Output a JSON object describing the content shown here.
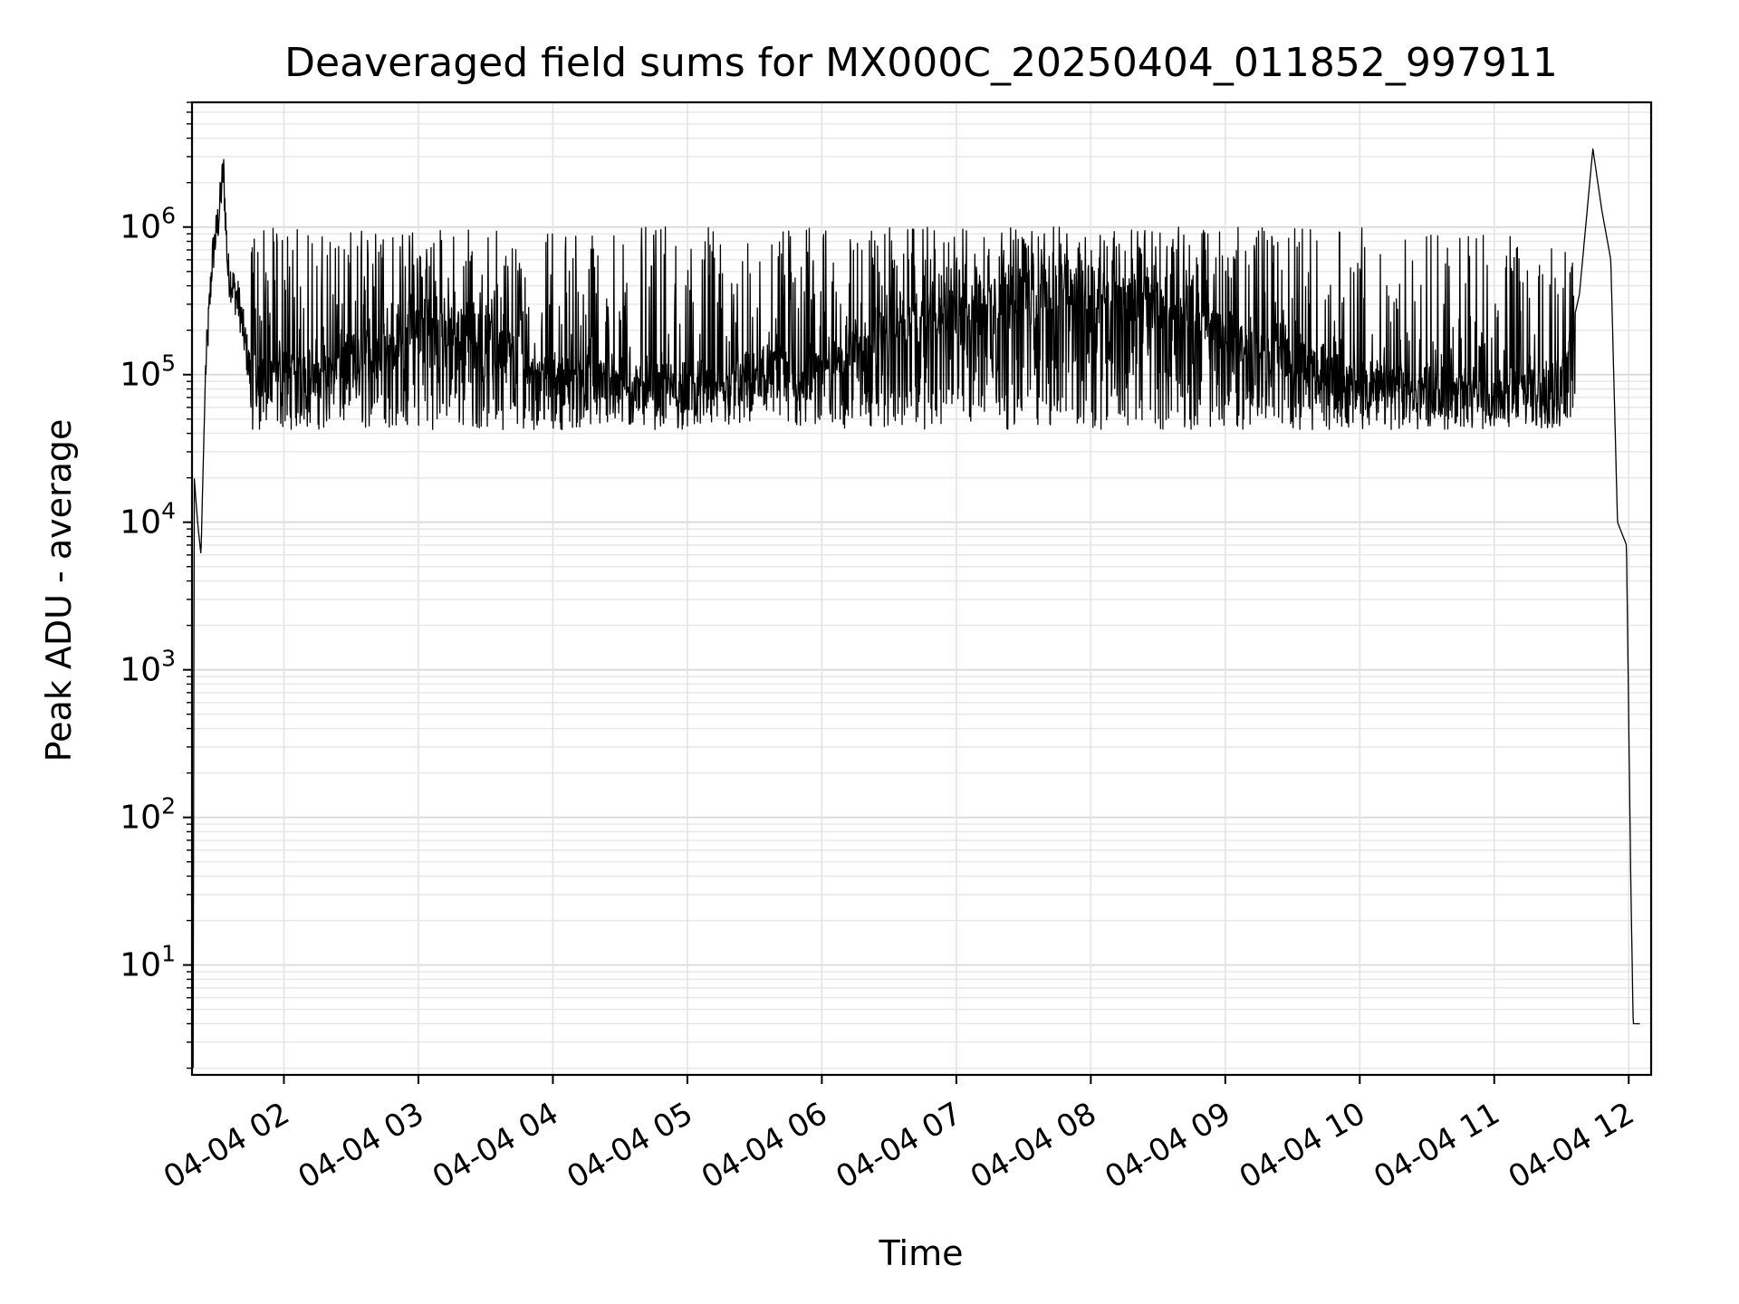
{
  "chart_data": {
    "type": "line",
    "title": "Deaveraged field sums for MX000C_20250404_011852_997911",
    "xlabel": "Time",
    "ylabel": "Peak ADU - average",
    "y_scale": "log",
    "ylim": [
      1.8,
      7000000
    ],
    "xlim": [
      "2025-04-04 01:19:00",
      "2025-04-04 12:10:00"
    ],
    "x_tick_labels": [
      "04-04 02",
      "04-04 03",
      "04-04 04",
      "04-04 05",
      "04-04 06",
      "04-04 07",
      "04-04 08",
      "04-04 09",
      "04-04 10",
      "04-04 11",
      "04-04 12"
    ],
    "x_tick_values": [
      "2025-04-04 02:00",
      "2025-04-04 03:00",
      "2025-04-04 04:00",
      "2025-04-04 05:00",
      "2025-04-04 06:00",
      "2025-04-04 07:00",
      "2025-04-04 08:00",
      "2025-04-04 09:00",
      "2025-04-04 10:00",
      "2025-04-04 11:00",
      "2025-04-04 12:00"
    ],
    "y_tick_labels": [
      {
        "base": "10",
        "exp": "1",
        "value": 10
      },
      {
        "base": "10",
        "exp": "2",
        "value": 100
      },
      {
        "base": "10",
        "exp": "3",
        "value": 1000
      },
      {
        "base": "10",
        "exp": "4",
        "value": 10000
      },
      {
        "base": "10",
        "exp": "5",
        "value": 100000
      },
      {
        "base": "10",
        "exp": "6",
        "value": 1000000
      }
    ],
    "grid": "on (major and minor, light gray)",
    "line_color": "#000000",
    "series": [
      {
        "points": [
          {
            "x": "2025-04-04 01:19:30",
            "y": 2
          },
          {
            "x": "2025-04-04 01:20:00",
            "y": 20000
          },
          {
            "x": "2025-04-04 01:21:30",
            "y": 10000
          },
          {
            "x": "2025-04-04 01:23:00",
            "y": 6000
          },
          {
            "x": "2025-04-04 01:25:00",
            "y": 100000
          },
          {
            "x": "2025-04-04 01:28:00",
            "y": 600000
          },
          {
            "x": "2025-04-04 01:31:00",
            "y": 1200000
          },
          {
            "x": "2025-04-04 01:33:00",
            "y": 2500000
          },
          {
            "x": "2025-04-04 01:35:00",
            "y": 500000
          },
          {
            "x": "2025-04-04 01:40:00",
            "y": 300000
          },
          {
            "x": "2025-04-04 01:45:00",
            "y": 100000
          },
          {
            "x": "2025-04-04 02:00:00",
            "y": 110000
          },
          {
            "x": "2025-04-04 02:30:00",
            "y": 130000
          },
          {
            "x": "2025-04-04 03:00:00",
            "y": 250000
          },
          {
            "x": "2025-04-04 03:30:00",
            "y": 200000
          },
          {
            "x": "2025-04-04 04:00:00",
            "y": 100000
          },
          {
            "x": "2025-04-04 04:30:00",
            "y": 90000
          },
          {
            "x": "2025-04-04 05:00:00",
            "y": 80000
          },
          {
            "x": "2025-04-04 05:30:00",
            "y": 100000
          },
          {
            "x": "2025-04-04 06:00:00",
            "y": 120000
          },
          {
            "x": "2025-04-04 06:30:00",
            "y": 200000
          },
          {
            "x": "2025-04-04 07:00:00",
            "y": 300000
          },
          {
            "x": "2025-04-04 07:30:00",
            "y": 400000
          },
          {
            "x": "2025-04-04 08:00:00",
            "y": 400000
          },
          {
            "x": "2025-04-04 08:30:00",
            "y": 350000
          },
          {
            "x": "2025-04-04 09:00:00",
            "y": 200000
          },
          {
            "x": "2025-04-04 09:30:00",
            "y": 130000
          },
          {
            "x": "2025-04-04 10:00:00",
            "y": 90000
          },
          {
            "x": "2025-04-04 10:30:00",
            "y": 80000
          },
          {
            "x": "2025-04-04 11:00:00",
            "y": 70000
          },
          {
            "x": "2025-04-04 11:30:00",
            "y": 100000
          },
          {
            "x": "2025-04-04 11:38:00",
            "y": 350000
          },
          {
            "x": "2025-04-04 11:44:00",
            "y": 3400000
          },
          {
            "x": "2025-04-04 11:48:00",
            "y": 1300000
          },
          {
            "x": "2025-04-04 11:52:00",
            "y": 600000
          },
          {
            "x": "2025-04-04 11:55:00",
            "y": 10000
          },
          {
            "x": "2025-04-04 11:59:00",
            "y": 7000
          },
          {
            "x": "2025-04-04 12:01:00",
            "y": 30
          },
          {
            "x": "2025-04-04 12:02:00",
            "y": 4
          },
          {
            "x": "2025-04-04 12:05:00",
            "y": 4
          }
        ],
        "noise_band_y": [
          30000,
          1000000
        ]
      }
    ]
  }
}
